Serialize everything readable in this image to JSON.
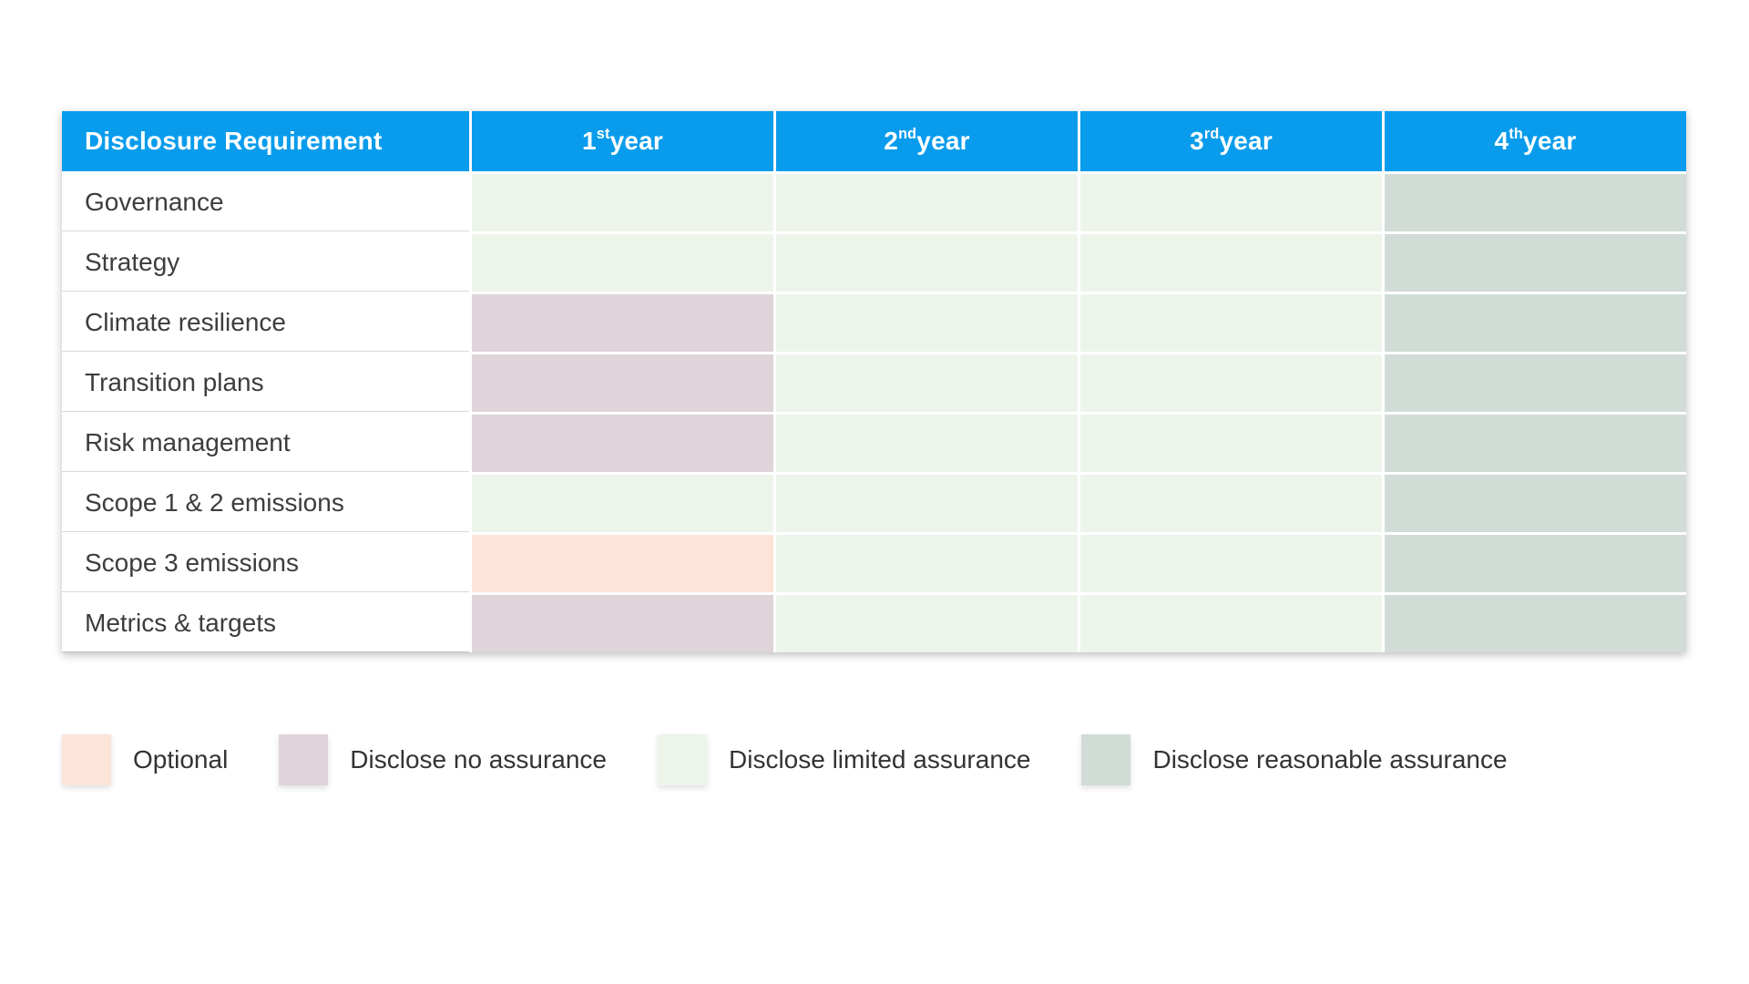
{
  "colors": {
    "header_bg": "#0a9cec",
    "header_text": "#ffffff",
    "optional": "#fce4d9",
    "none": "#ded4da",
    "limited": "#edf5eb",
    "reasonable": "#d1dcd6",
    "row_label_text": "#3d3d3d"
  },
  "table": {
    "header_label": "Disclosure Requirement",
    "year_headers": [
      {
        "num": "1",
        "sup": "st",
        "rest": " year"
      },
      {
        "num": "2",
        "sup": "nd",
        "rest": " year"
      },
      {
        "num": "3",
        "sup": "rd",
        "rest": " year"
      },
      {
        "num": "4",
        "sup": "th",
        "rest": " year"
      }
    ],
    "rows": [
      {
        "label": "Governance",
        "years": [
          "limited",
          "limited",
          "limited",
          "reasonable"
        ]
      },
      {
        "label": "Strategy",
        "years": [
          "limited",
          "limited",
          "limited",
          "reasonable"
        ]
      },
      {
        "label": "Climate resilience",
        "years": [
          "none",
          "limited",
          "limited",
          "reasonable"
        ]
      },
      {
        "label": "Transition plans",
        "years": [
          "none",
          "limited",
          "limited",
          "reasonable"
        ]
      },
      {
        "label": "Risk management",
        "years": [
          "none",
          "limited",
          "limited",
          "reasonable"
        ]
      },
      {
        "label": "Scope 1 & 2 emissions",
        "years": [
          "limited",
          "limited",
          "limited",
          "reasonable"
        ]
      },
      {
        "label": "Scope 3 emissions",
        "years": [
          "optional",
          "limited",
          "limited",
          "reasonable"
        ]
      },
      {
        "label": "Metrics & targets",
        "years": [
          "none",
          "limited",
          "limited",
          "reasonable"
        ]
      }
    ]
  },
  "legend": [
    {
      "key": "optional",
      "label": "Optional"
    },
    {
      "key": "none",
      "label": "Disclose no assurance"
    },
    {
      "key": "limited",
      "label": "Disclose limited assurance"
    },
    {
      "key": "reasonable",
      "label": "Disclose reasonable assurance"
    }
  ],
  "chart_data": {
    "type": "table",
    "title": "",
    "columns": [
      "Disclosure Requirement",
      "1st year",
      "2nd year",
      "3rd year",
      "4th year"
    ],
    "rows": [
      [
        "Governance",
        "Disclose limited assurance",
        "Disclose limited assurance",
        "Disclose limited assurance",
        "Disclose reasonable assurance"
      ],
      [
        "Strategy",
        "Disclose limited assurance",
        "Disclose limited assurance",
        "Disclose limited assurance",
        "Disclose reasonable assurance"
      ],
      [
        "Climate resilience",
        "Disclose no assurance",
        "Disclose limited assurance",
        "Disclose limited assurance",
        "Disclose reasonable assurance"
      ],
      [
        "Transition plans",
        "Disclose no assurance",
        "Disclose limited assurance",
        "Disclose limited assurance",
        "Disclose reasonable assurance"
      ],
      [
        "Risk management",
        "Disclose no assurance",
        "Disclose limited assurance",
        "Disclose limited assurance",
        "Disclose reasonable assurance"
      ],
      [
        "Scope 1 & 2 emissions",
        "Disclose limited assurance",
        "Disclose limited assurance",
        "Disclose limited assurance",
        "Disclose reasonable assurance"
      ],
      [
        "Scope 3 emissions",
        "Optional",
        "Disclose limited assurance",
        "Disclose limited assurance",
        "Disclose reasonable assurance"
      ],
      [
        "Metrics & targets",
        "Disclose no assurance",
        "Disclose limited assurance",
        "Disclose limited assurance",
        "Disclose reasonable assurance"
      ]
    ],
    "legend": [
      "Optional",
      "Disclose no assurance",
      "Disclose limited assurance",
      "Disclose reasonable assurance"
    ],
    "legend_position": "bottom",
    "cell_color_map": {
      "Optional": "#fce4d9",
      "Disclose no assurance": "#ded4da",
      "Disclose limited assurance": "#edf5eb",
      "Disclose reasonable assurance": "#d1dcd6"
    }
  }
}
